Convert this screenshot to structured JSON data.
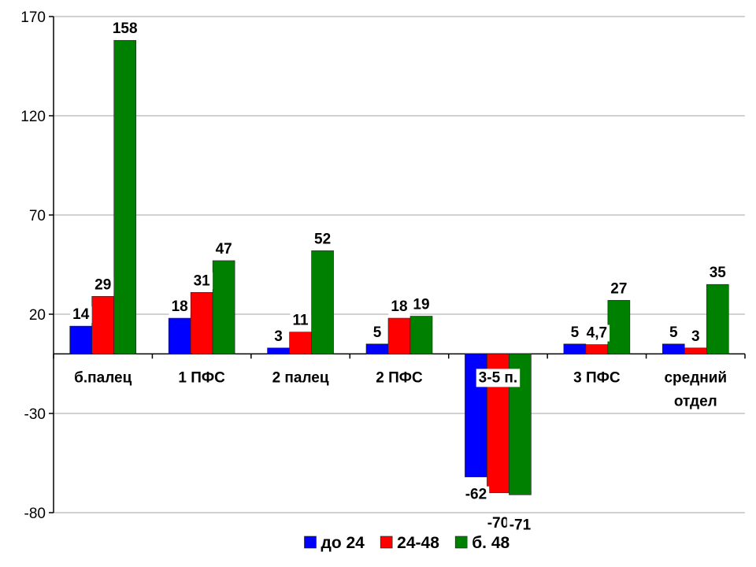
{
  "chart_data": {
    "type": "bar",
    "title": "",
    "xlabel": "",
    "ylabel": "",
    "categories": [
      [
        "б.палец"
      ],
      [
        "1 ПФС"
      ],
      [
        "2 палец"
      ],
      [
        "2 ПФС"
      ],
      [
        "3-5 п."
      ],
      [
        "3 ПФС"
      ],
      [
        "средний",
        "отдел"
      ]
    ],
    "series": [
      {
        "name": "до 24",
        "color": "#0000ff",
        "values": [
          14,
          18,
          3,
          5,
          -62,
          5,
          5
        ],
        "labels": [
          "14",
          "18",
          "3",
          "5",
          "-62",
          "5",
          "5"
        ]
      },
      {
        "name": "24-48",
        "color": "#ff0000",
        "values": [
          29,
          31,
          11,
          18,
          -70,
          4.7,
          3
        ],
        "labels": [
          "29",
          "31",
          "11",
          "18",
          "-70",
          "4,7",
          "3"
        ]
      },
      {
        "name": "б. 48",
        "color": "#008000",
        "values": [
          158,
          47,
          52,
          19,
          -71,
          27,
          35
        ],
        "labels": [
          "158",
          "47",
          "52",
          "19",
          "-71",
          "27",
          "35"
        ]
      }
    ],
    "ylim": [
      -80,
      170
    ],
    "yticks": [
      -80,
      -30,
      20,
      70,
      120,
      170
    ],
    "grid": true,
    "legend": "bottom"
  }
}
